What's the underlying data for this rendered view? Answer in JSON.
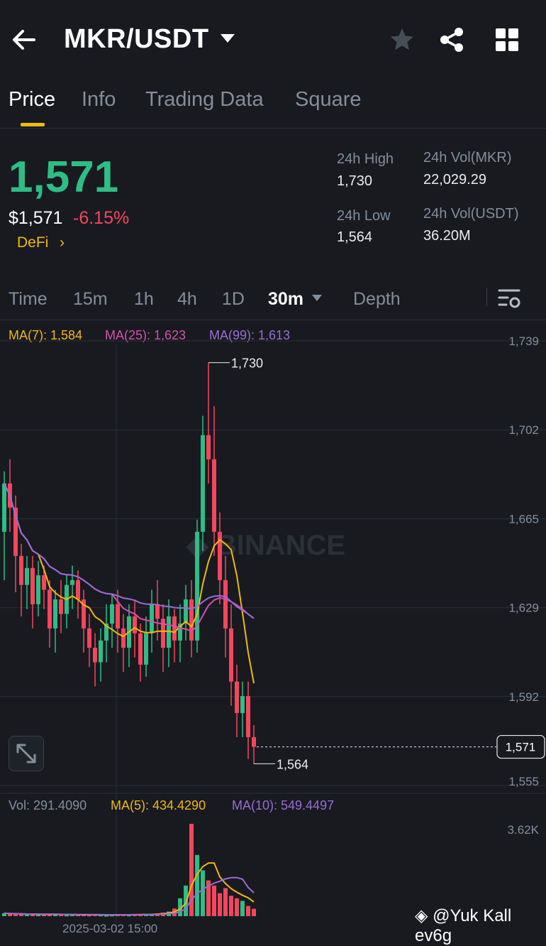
{
  "header": {
    "pair": "MKR/USDT",
    "icons": [
      "back-arrow-icon",
      "caret-down-icon",
      "star-icon",
      "share-icon",
      "grid-icon"
    ]
  },
  "tabs": [
    {
      "label": "Price",
      "active": true
    },
    {
      "label": "Info"
    },
    {
      "label": "Trading Data"
    },
    {
      "label": "Square"
    }
  ],
  "price": {
    "last": "1,571",
    "usd": "$1,571",
    "change": "-6.15%",
    "category": "DeFi",
    "category_arrow": "›"
  },
  "stats": {
    "high_label": "24h High",
    "high": "1,730",
    "low_label": "24h Low",
    "low": "1,564",
    "vol_base_label": "24h Vol(MKR)",
    "vol_base": "22,029.29",
    "vol_quote_label": "24h Vol(USDT)",
    "vol_quote": "36.20M"
  },
  "intervals": [
    {
      "label": "Time"
    },
    {
      "label": "15m"
    },
    {
      "label": "1h"
    },
    {
      "label": "4h"
    },
    {
      "label": "1D"
    },
    {
      "label": "30m",
      "active": true,
      "dropdown": true
    },
    {
      "label": "Depth"
    }
  ],
  "indicators": {
    "ma7": "MA(7): 1,584",
    "ma25": "MA(25): 1,623",
    "ma99": "MA(99): 1,613",
    "vol": "Vol: 291.4090",
    "vma5": "MA(5): 434.4290",
    "vma10": "MA(10): 549.4497"
  },
  "colors": {
    "up": "#2ebd85",
    "down": "#f6465d",
    "ma7": "#f0b90b",
    "ma25": "#d54fb0",
    "ma99": "#9b6bd6",
    "accent": "#f0b90b"
  },
  "chart_data": {
    "type": "candlestick",
    "interval": "30m",
    "y_axis_labels": [
      "1,739",
      "1,702",
      "1,665",
      "1,629",
      "1,592",
      "1,555"
    ],
    "last_price_tag": "1,571",
    "high_marker": "1,730",
    "low_marker": "1,564",
    "vol_axis_labels": [
      "3.62K"
    ],
    "watermark": "BINANCE",
    "time_label": "2025-03-02 15:00",
    "candles": [
      [
        1660,
        1680,
        1645,
        1685,
        1640
      ],
      [
        1680,
        1670,
        1665,
        1690,
        1660
      ],
      [
        1670,
        1650,
        1640,
        1675,
        1635
      ],
      [
        1650,
        1638,
        1630,
        1655,
        1625
      ],
      [
        1638,
        1645,
        1632,
        1650,
        1628
      ],
      [
        1645,
        1630,
        1625,
        1650,
        1620
      ],
      [
        1630,
        1642,
        1628,
        1648,
        1625
      ],
      [
        1642,
        1636,
        1630,
        1646,
        1628
      ],
      [
        1636,
        1620,
        1618,
        1640,
        1612
      ],
      [
        1620,
        1632,
        1615,
        1636,
        1610
      ],
      [
        1632,
        1626,
        1620,
        1640,
        1618
      ],
      [
        1626,
        1638,
        1622,
        1642,
        1620
      ],
      [
        1638,
        1640,
        1632,
        1646,
        1628
      ],
      [
        1640,
        1632,
        1628,
        1644,
        1624
      ],
      [
        1632,
        1620,
        1615,
        1636,
        1610
      ],
      [
        1620,
        1612,
        1608,
        1626,
        1604
      ],
      [
        1612,
        1606,
        1600,
        1618,
        1596
      ],
      [
        1606,
        1615,
        1600,
        1620,
        1598
      ],
      [
        1615,
        1622,
        1610,
        1630,
        1606
      ],
      [
        1622,
        1630,
        1618,
        1634,
        1612
      ],
      [
        1630,
        1620,
        1615,
        1636,
        1610
      ],
      [
        1620,
        1612,
        1608,
        1626,
        1602
      ],
      [
        1612,
        1625,
        1608,
        1630,
        1604
      ],
      [
        1625,
        1618,
        1612,
        1632,
        1608
      ],
      [
        1618,
        1605,
        1600,
        1622,
        1598
      ],
      [
        1605,
        1618,
        1602,
        1625,
        1600
      ],
      [
        1618,
        1630,
        1615,
        1636,
        1610
      ],
      [
        1630,
        1624,
        1618,
        1640,
        1615
      ],
      [
        1624,
        1612,
        1608,
        1630,
        1602
      ],
      [
        1612,
        1625,
        1608,
        1632,
        1604
      ],
      [
        1625,
        1615,
        1612,
        1628,
        1606
      ],
      [
        1615,
        1622,
        1610,
        1630,
        1606
      ],
      [
        1622,
        1632,
        1618,
        1638,
        1615
      ],
      [
        1632,
        1615,
        1612,
        1640,
        1608
      ],
      [
        1615,
        1660,
        1612,
        1665,
        1610
      ],
      [
        1660,
        1700,
        1655,
        1708,
        1652
      ],
      [
        1700,
        1690,
        1685,
        1730,
        1680
      ],
      [
        1690,
        1660,
        1655,
        1712,
        1650
      ],
      [
        1660,
        1640,
        1635,
        1668,
        1630
      ],
      [
        1640,
        1620,
        1612,
        1650,
        1608
      ],
      [
        1620,
        1598,
        1592,
        1630,
        1588
      ],
      [
        1598,
        1585,
        1580,
        1605,
        1575
      ],
      [
        1585,
        1592,
        1578,
        1598,
        1575
      ],
      [
        1592,
        1575,
        1570,
        1598,
        1566
      ],
      [
        1575,
        1571,
        1566,
        1580,
        1564
      ]
    ],
    "volumes": [
      120,
      90,
      80,
      70,
      60,
      80,
      70,
      60,
      90,
      70,
      60,
      50,
      60,
      55,
      60,
      50,
      60,
      50,
      40,
      50,
      60,
      70,
      50,
      60,
      70,
      80,
      90,
      110,
      140,
      180,
      300,
      700,
      1200,
      3620,
      2400,
      1800,
      1400,
      1200,
      900,
      1100,
      800,
      700,
      600,
      400,
      291
    ]
  }
}
